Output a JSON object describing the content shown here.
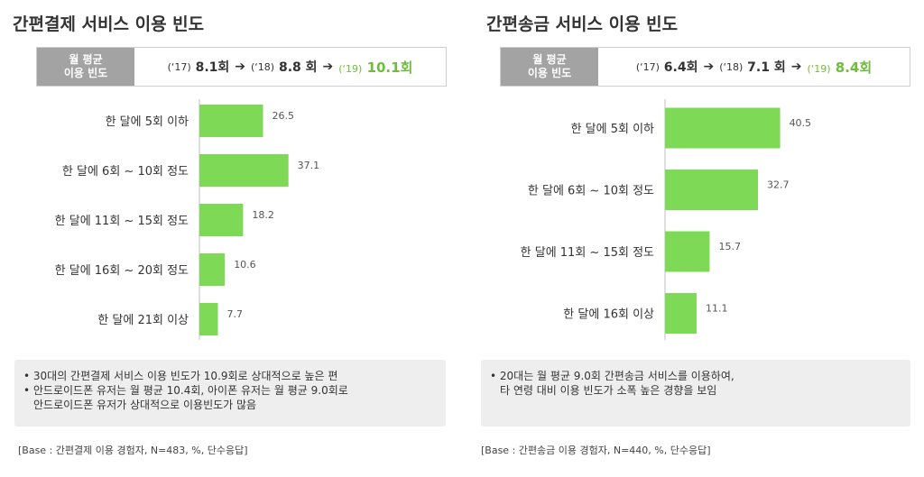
{
  "left": {
    "title": "간편결제 서비스 이용 빈도",
    "freq_label_1": "월 평균",
    "freq_label_2": "이용 빈도",
    "freq": [
      {
        "year": "(‘17)",
        "value": "8.1회"
      },
      {
        "year": "(‘18)",
        "value": "8.8 회"
      },
      {
        "year": "(‘19)",
        "value": "10.1회"
      }
    ],
    "notes": [
      "• 30대의 간편결제 서비스 이용 빈도가 10.9회로 상대적으로 높은 편",
      "• 안드로이드폰 유저는 월 평균 10.4회, 아이폰 유저는 월 평균 9.0회로",
      "안드로이드폰 유저가 상대적으로 이용빈도가 많음"
    ],
    "base": "[Base : 간편결제 이용 경험자, N=483, %, 단수응답]"
  },
  "right": {
    "title": "간편송금 서비스 이용 빈도",
    "freq_label_1": "월 평균",
    "freq_label_2": "이용 빈도",
    "freq": [
      {
        "year": "(‘17)",
        "value": "6.4회"
      },
      {
        "year": "(‘18)",
        "value": "7.1 회"
      },
      {
        "year": "(‘19)",
        "value": "8.4회"
      }
    ],
    "notes": [
      "• 20대는 월 평균 9.0회 간편송금 서비스를 이용하여,",
      "타 연령 대비 이용 빈도가 소폭 높은 경향을 보임"
    ],
    "base": "[Base : 간편송금 이용 경험자, N=440, %, 단수응답]"
  },
  "colors": {
    "bar": "#7ed957",
    "highlight": "#6fbe3b",
    "label_box": "#a3a3a3",
    "note_bg": "#eeeeee"
  },
  "chart_data": [
    {
      "type": "bar",
      "orientation": "horizontal",
      "title": "간편결제 서비스 이용 빈도",
      "categories": [
        "한 달에 5회 이하",
        "한 달에 6회 ~ 10회 정도",
        "한 달에 11회 ~ 15회 정도",
        "한 달에 16회 ~ 20회 정도",
        "한 달에 21회 이상"
      ],
      "values": [
        26.5,
        37.1,
        18.2,
        10.6,
        7.7
      ],
      "xlim": [
        0,
        100
      ],
      "grid": false,
      "legend": "none"
    },
    {
      "type": "bar",
      "orientation": "horizontal",
      "title": "간편송금 서비스 이용 빈도",
      "categories": [
        "한 달에 5회 이하",
        "한 달에 6회 ~ 10회 정도",
        "한 달에 11회 ~ 15회 정도",
        "한 달에 16회 이상"
      ],
      "values": [
        40.5,
        32.7,
        15.7,
        11.1
      ],
      "xlim": [
        0,
        100
      ],
      "grid": false,
      "legend": "none"
    }
  ]
}
